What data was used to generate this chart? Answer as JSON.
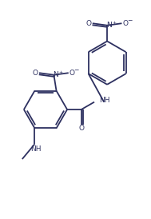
{
  "bg_color": "#ffffff",
  "line_color": "#2d3060",
  "line_width": 1.3,
  "font_size": 6.5,
  "fig_width": 1.89,
  "fig_height": 2.74,
  "dpi": 100,
  "xlim": [
    0,
    9
  ],
  "ylim": [
    0,
    13
  ]
}
